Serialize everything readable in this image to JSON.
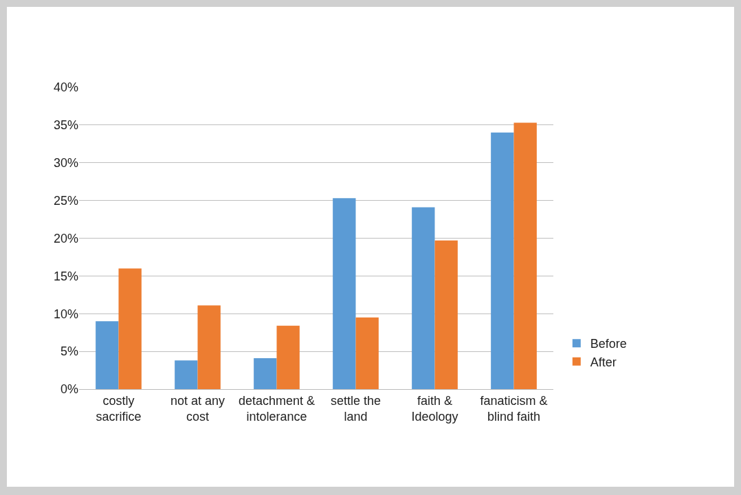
{
  "chart_data": {
    "type": "bar",
    "categories": [
      "costly sacrifice",
      "not at any cost",
      "detachment & intolerance",
      "settle the land",
      "faith & Ideology",
      "fanaticism & blind faith"
    ],
    "series": [
      {
        "name": "Before",
        "color": "#5b9bd5",
        "values": [
          9.0,
          3.8,
          4.1,
          25.3,
          24.1,
          34.0
        ]
      },
      {
        "name": "After",
        "color": "#ed7d31",
        "values": [
          16.0,
          11.1,
          8.4,
          9.5,
          19.7,
          35.3
        ]
      }
    ],
    "ylim": [
      0,
      40
    ],
    "yticks": [
      {
        "value": 0,
        "label": "0%"
      },
      {
        "value": 5,
        "label": "5%"
      },
      {
        "value": 10,
        "label": "10%"
      },
      {
        "value": 15,
        "label": "15%"
      },
      {
        "value": 20,
        "label": "20%"
      },
      {
        "value": 25,
        "label": "25%"
      },
      {
        "value": 30,
        "label": "30%"
      },
      {
        "value": 35,
        "label": "35%"
      },
      {
        "value": 40,
        "label": "40%"
      }
    ],
    "grid": "y",
    "legend": "right"
  }
}
